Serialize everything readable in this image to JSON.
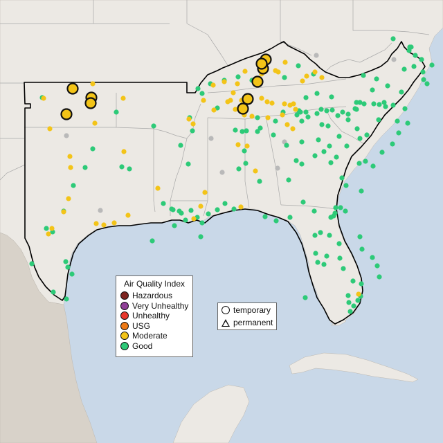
{
  "legend": {
    "title": "Air Quality Index",
    "categories": [
      {
        "label": "Hazardous",
        "color": "#7e2420"
      },
      {
        "label": "Very Unhealthy",
        "color": "#8f3f97"
      },
      {
        "label": "Unhealthy",
        "color": "#e8372c"
      },
      {
        "label": "USG",
        "color": "#ee7a16"
      },
      {
        "label": "Moderate",
        "color": "#f3c418"
      },
      {
        "label": "Good",
        "color": "#2dca78"
      }
    ]
  },
  "monitor_legend": {
    "temporary_label": "temporary",
    "permanent_label": "permanent"
  },
  "colors": {
    "water": "#c9d8e8",
    "land": "#ece9e4",
    "terrain": "#d8d2c9",
    "state_lines": "#a8a8a8",
    "region_outline": "#000000",
    "no_data": "#b9b9b9"
  },
  "monitor_groups": {
    "temporary_moderate": {
      "category": "Moderate",
      "type": "temporary",
      "count": 10
    },
    "permanent_moderate": {
      "category": "Moderate",
      "type": "permanent",
      "count": 60
    },
    "permanent_good": {
      "category": "Good",
      "type": "permanent",
      "count": 170
    },
    "no_data": {
      "category": "none",
      "type": "permanent",
      "count": 8
    }
  }
}
